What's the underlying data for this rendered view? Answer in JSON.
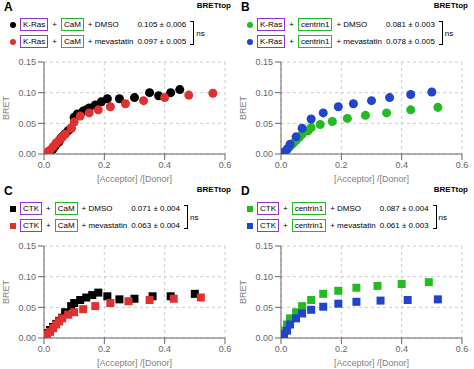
{
  "chart_data": [
    {
      "type": "scatter",
      "label": "A",
      "title": "BRETtop",
      "xlabel": "[Acceptor] /[Donor]",
      "ylabel": "BRET",
      "marker": "circle",
      "legend_prefix": [
        {
          "label": "K-Ras",
          "color": "#9b30d0"
        },
        {
          "label": "+"
        },
        {
          "label": "CaM",
          "color": "#22bb22"
        }
      ],
      "annotations": [
        "ns"
      ],
      "xlim": [
        0,
        0.6
      ],
      "ylim": [
        0,
        0.15
      ],
      "xticks": [
        {
          "value": 0.0,
          "label": "0.0"
        },
        {
          "value": 0.2,
          "label": "0.2"
        },
        {
          "value": 0.4,
          "label": "0.4"
        },
        {
          "value": 0.6,
          "label": "0.6"
        }
      ],
      "yticks": [
        {
          "value": 0.0,
          "label": "0.00"
        },
        {
          "value": 0.05,
          "label": "0.05"
        },
        {
          "value": 0.1,
          "label": "0.10"
        },
        {
          "value": 0.15,
          "label": "0.15"
        }
      ],
      "series": [
        {
          "name": "+ DMSO",
          "annotation": "0.105 ± 0.006",
          "color": "black",
          "x": [
            0.02,
            0.03,
            0.035,
            0.04,
            0.05,
            0.055,
            0.06,
            0.07,
            0.08,
            0.09,
            0.1,
            0.11,
            0.13,
            0.14,
            0.15,
            0.17,
            0.19,
            0.21,
            0.25,
            0.3,
            0.35,
            0.38,
            0.42,
            0.45
          ],
          "values": [
            0.005,
            0.008,
            0.012,
            0.015,
            0.02,
            0.025,
            0.028,
            0.033,
            0.038,
            0.042,
            0.06,
            0.065,
            0.07,
            0.072,
            0.075,
            0.08,
            0.085,
            0.09,
            0.09,
            0.092,
            0.1,
            0.095,
            0.1,
            0.105
          ]
        },
        {
          "name": "+ mevastatin",
          "annotation": "0.097 ± 0.005",
          "color": "#e03030",
          "x": [
            0.01,
            0.015,
            0.02,
            0.03,
            0.04,
            0.05,
            0.06,
            0.07,
            0.09,
            0.1,
            0.12,
            0.15,
            0.18,
            0.22,
            0.27,
            0.33,
            0.4,
            0.48,
            0.56
          ],
          "values": [
            0.002,
            0.004,
            0.006,
            0.012,
            0.018,
            0.022,
            0.027,
            0.032,
            0.042,
            0.052,
            0.062,
            0.067,
            0.072,
            0.077,
            0.082,
            0.087,
            0.092,
            0.096,
            0.099
          ]
        }
      ]
    },
    {
      "type": "scatter",
      "label": "B",
      "title": "BRETtop",
      "xlabel": "[Acceptor] /[Donor]",
      "ylabel": "BRET",
      "marker": "circle",
      "legend_prefix": [
        {
          "label": "K-Ras",
          "color": "#9b30d0"
        },
        {
          "label": "+"
        },
        {
          "label": "centrin1",
          "color": "#22bb22"
        }
      ],
      "annotations": [
        "ns"
      ],
      "xlim": [
        0,
        0.6
      ],
      "ylim": [
        0,
        0.15
      ],
      "xticks": [
        {
          "value": 0.0,
          "label": "0.0"
        },
        {
          "value": 0.2,
          "label": "0.2"
        },
        {
          "value": 0.4,
          "label": "0.4"
        },
        {
          "value": 0.6,
          "label": "0.6"
        }
      ],
      "yticks": [
        {
          "value": 0.0,
          "label": "0.00"
        },
        {
          "value": 0.05,
          "label": "0.05"
        },
        {
          "value": 0.1,
          "label": "0.10"
        },
        {
          "value": 0.15,
          "label": "0.15"
        }
      ],
      "series": [
        {
          "name": "+ DMSO",
          "annotation": "0.081 ± 0.003",
          "color": "#22bb22",
          "x": [
            0.01,
            0.015,
            0.02,
            0.03,
            0.04,
            0.05,
            0.06,
            0.07,
            0.09,
            0.1,
            0.13,
            0.17,
            0.22,
            0.28,
            0.35,
            0.43,
            0.52
          ],
          "values": [
            0.002,
            0.004,
            0.007,
            0.012,
            0.017,
            0.022,
            0.027,
            0.032,
            0.038,
            0.043,
            0.048,
            0.053,
            0.058,
            0.063,
            0.067,
            0.072,
            0.076
          ]
        },
        {
          "name": "+ mevastatin",
          "annotation": "0.078 ± 0.005",
          "color": "#2244cc",
          "x": [
            0.01,
            0.02,
            0.03,
            0.05,
            0.07,
            0.1,
            0.14,
            0.19,
            0.24,
            0.3,
            0.36,
            0.43,
            0.5
          ],
          "values": [
            0.003,
            0.008,
            0.016,
            0.028,
            0.042,
            0.057,
            0.067,
            0.077,
            0.082,
            0.087,
            0.092,
            0.097,
            0.101
          ]
        }
      ]
    },
    {
      "type": "scatter",
      "label": "C",
      "title": "BRETtop",
      "xlabel": "[Acceptor] /[Donor]",
      "ylabel": "BRET",
      "marker": "square",
      "legend_prefix": [
        {
          "label": "CTK",
          "color": "#9b30d0"
        },
        {
          "label": "+"
        },
        {
          "label": "CaM",
          "color": "#22bb22"
        }
      ],
      "annotations": [
        "ns"
      ],
      "xlim": [
        0,
        0.6
      ],
      "ylim": [
        0,
        0.15
      ],
      "xticks": [
        {
          "value": 0.0,
          "label": "0.0"
        },
        {
          "value": 0.2,
          "label": "0.2"
        },
        {
          "value": 0.4,
          "label": "0.4"
        },
        {
          "value": 0.6,
          "label": "0.6"
        }
      ],
      "yticks": [
        {
          "value": 0.0,
          "label": "0.00"
        },
        {
          "value": 0.05,
          "label": "0.05"
        },
        {
          "value": 0.1,
          "label": "0.10"
        },
        {
          "value": 0.15,
          "label": "0.15"
        }
      ],
      "series": [
        {
          "name": "+ DMSO",
          "annotation": "0.071 ± 0.004",
          "color": "black",
          "x": [
            0.01,
            0.02,
            0.03,
            0.04,
            0.05,
            0.06,
            0.07,
            0.09,
            0.1,
            0.12,
            0.14,
            0.16,
            0.18,
            0.21,
            0.25,
            0.3,
            0.36,
            0.42,
            0.5
          ],
          "values": [
            0.008,
            0.013,
            0.018,
            0.023,
            0.028,
            0.033,
            0.042,
            0.052,
            0.057,
            0.062,
            0.066,
            0.07,
            0.074,
            0.068,
            0.063,
            0.064,
            0.068,
            0.068,
            0.072
          ]
        },
        {
          "name": "+ mevastatin",
          "annotation": "0.063 ± 0.004",
          "color": "#e03030",
          "x": [
            0.01,
            0.02,
            0.03,
            0.04,
            0.05,
            0.06,
            0.08,
            0.1,
            0.13,
            0.17,
            0.22,
            0.28,
            0.35,
            0.43,
            0.52
          ],
          "values": [
            0.006,
            0.01,
            0.016,
            0.022,
            0.027,
            0.032,
            0.038,
            0.042,
            0.047,
            0.052,
            0.057,
            0.06,
            0.062,
            0.064,
            0.066
          ]
        }
      ]
    },
    {
      "type": "scatter",
      "label": "D",
      "title": "BRETtop",
      "xlabel": "[Acceptor] /[Donor]",
      "ylabel": "BRET",
      "marker": "square",
      "legend_prefix": [
        {
          "label": "CTK",
          "color": "#9b30d0"
        },
        {
          "label": "+"
        },
        {
          "label": "centrin1",
          "color": "#22bb22"
        }
      ],
      "annotations": [
        "ns"
      ],
      "xlim": [
        0,
        0.6
      ],
      "ylim": [
        0,
        0.15
      ],
      "xticks": [
        {
          "value": 0.0,
          "label": "0.0"
        },
        {
          "value": 0.2,
          "label": "0.2"
        },
        {
          "value": 0.4,
          "label": "0.4"
        },
        {
          "value": 0.6,
          "label": "0.6"
        }
      ],
      "yticks": [
        {
          "value": 0.0,
          "label": "0.00"
        },
        {
          "value": 0.05,
          "label": "0.05"
        },
        {
          "value": 0.1,
          "label": "0.10"
        },
        {
          "value": 0.15,
          "label": "0.15"
        }
      ],
      "series": [
        {
          "name": "+ DMSO",
          "annotation": "0.087 ± 0.004",
          "color": "#22bb22",
          "x": [
            0.01,
            0.02,
            0.03,
            0.05,
            0.07,
            0.1,
            0.14,
            0.19,
            0.25,
            0.32,
            0.4,
            0.49
          ],
          "values": [
            0.012,
            0.022,
            0.032,
            0.042,
            0.052,
            0.062,
            0.072,
            0.077,
            0.082,
            0.085,
            0.088,
            0.091
          ]
        },
        {
          "name": "+ mevastatin",
          "annotation": "0.061 ± 0.003",
          "color": "#2244cc",
          "x": [
            0.01,
            0.02,
            0.03,
            0.05,
            0.07,
            0.1,
            0.14,
            0.19,
            0.25,
            0.33,
            0.42,
            0.52
          ],
          "values": [
            0.006,
            0.012,
            0.022,
            0.032,
            0.04,
            0.046,
            0.051,
            0.056,
            0.059,
            0.061,
            0.062,
            0.063
          ]
        }
      ]
    }
  ]
}
